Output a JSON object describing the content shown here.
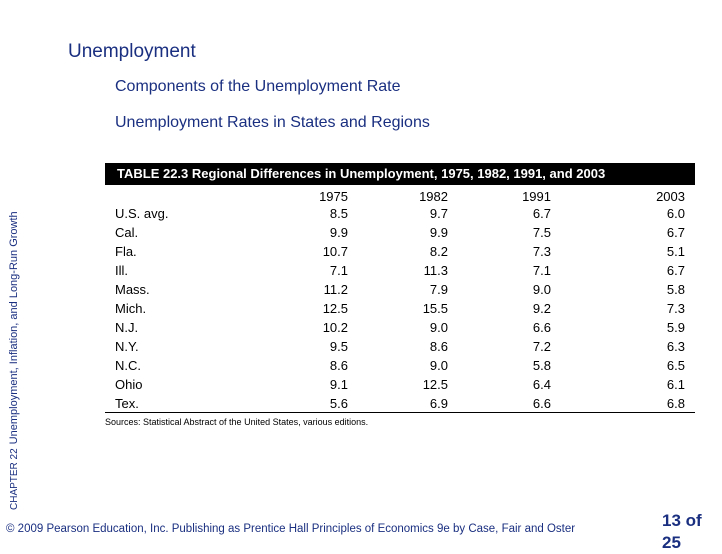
{
  "header": {
    "title": "Unemployment",
    "subtitle": "Components of the Unemployment Rate",
    "section": "Unemployment Rates in States and Regions"
  },
  "sidebar": {
    "chapter": "CHAPTER 22",
    "chapter_title": "Unemployment, Inflation, and Long-Run Growth"
  },
  "table": {
    "caption": "TABLE 22.3  Regional Differences in Unemployment, 1975, 1982, 1991, and 2003",
    "columns": [
      "",
      "1975",
      "1982",
      "1991",
      "2003"
    ],
    "rows": [
      [
        "U.S. avg.",
        "8.5",
        "9.7",
        "6.7",
        "6.0"
      ],
      [
        "Cal.",
        "9.9",
        "9.9",
        "7.5",
        "6.7"
      ],
      [
        "Fla.",
        "10.7",
        "8.2",
        "7.3",
        "5.1"
      ],
      [
        "Ill.",
        "7.1",
        "11.3",
        "7.1",
        "6.7"
      ],
      [
        "Mass.",
        "11.2",
        "7.9",
        "9.0",
        "5.8"
      ],
      [
        "Mich.",
        "12.5",
        "15.5",
        "9.2",
        "7.3"
      ],
      [
        "N.J.",
        "10.2",
        "9.0",
        "6.6",
        "5.9"
      ],
      [
        "N.Y.",
        "9.5",
        "8.6",
        "7.2",
        "6.3"
      ],
      [
        "N.C.",
        "8.6",
        "9.0",
        "5.8",
        "6.5"
      ],
      [
        "Ohio",
        "9.1",
        "12.5",
        "6.4",
        "6.1"
      ],
      [
        "Tex.",
        "5.6",
        "6.9",
        "6.6",
        "6.8"
      ]
    ],
    "source": "Sources: Statistical Abstract of the United States, various editions."
  },
  "footer": {
    "copyright": "© 2009 Pearson Education, Inc. Publishing as Prentice Hall   Principles of Economics 9e by Case, Fair and Oster",
    "page": "13 of 25"
  }
}
